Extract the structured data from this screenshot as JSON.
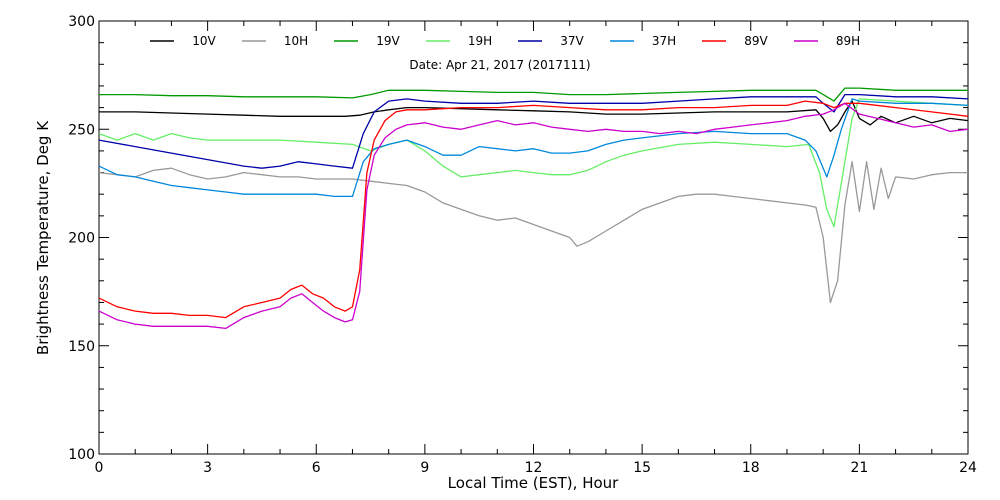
{
  "chart_data": {
    "type": "line",
    "subtitle": "Date: Apr 21, 2017 (2017111)",
    "xlabel": "Local Time (EST), Hour",
    "ylabel": "Brightness Temperature, Deg K",
    "xlim": [
      0,
      24
    ],
    "ylim": [
      100,
      300
    ],
    "xticks": [
      "0",
      "3",
      "6",
      "9",
      "12",
      "15",
      "18",
      "21",
      "24"
    ],
    "yticks": [
      "100",
      "150",
      "200",
      "250",
      "300"
    ],
    "grid": false,
    "legend_position": "top",
    "series": [
      {
        "name": "10V",
        "color": "#000000",
        "x": [
          0,
          1,
          2,
          3,
          4,
          5,
          6,
          6.8,
          7.2,
          7.6,
          8,
          8.5,
          9,
          10,
          11,
          12,
          13,
          14,
          15,
          16,
          17,
          18,
          19,
          19.8,
          20,
          20.2,
          20.4,
          20.6,
          20.8,
          21,
          21.3,
          21.6,
          22,
          22.5,
          23,
          23.5,
          24
        ],
        "y": [
          258,
          258,
          257.5,
          257,
          256.5,
          256,
          256,
          256,
          256.5,
          258,
          259,
          260,
          260,
          259.5,
          259,
          258.5,
          258,
          257,
          257,
          257.5,
          258,
          258,
          258,
          259,
          255,
          249,
          252,
          258,
          263,
          255,
          252,
          256,
          253,
          256,
          253,
          255,
          254
        ]
      },
      {
        "name": "10H",
        "color": "#999999",
        "x": [
          0,
          0.5,
          1,
          1.5,
          2,
          2.5,
          3,
          3.5,
          4,
          4.5,
          5,
          5.5,
          6,
          6.5,
          7,
          7.5,
          8,
          8.5,
          9,
          9.5,
          10,
          10.5,
          11,
          11.5,
          12,
          12.5,
          13,
          13.2,
          13.5,
          14,
          14.5,
          15,
          15.5,
          16,
          16.5,
          17,
          17.5,
          18,
          18.5,
          19,
          19.5,
          19.8,
          20,
          20.2,
          20.4,
          20.6,
          20.8,
          21,
          21.2,
          21.4,
          21.6,
          21.8,
          22,
          22.5,
          23,
          23.5,
          24
        ],
        "y": [
          230,
          229,
          228,
          231,
          232,
          229,
          227,
          228,
          230,
          229,
          228,
          228,
          227,
          227,
          227,
          226,
          225,
          224,
          221,
          216,
          213,
          210,
          208,
          209,
          206,
          203,
          200,
          196,
          198,
          203,
          208,
          213,
          216,
          219,
          220,
          220,
          219,
          218,
          217,
          216,
          215,
          214,
          200,
          170,
          180,
          215,
          235,
          212,
          235,
          213,
          232,
          218,
          228,
          227,
          229,
          230,
          230
        ]
      },
      {
        "name": "19V",
        "color": "#009900",
        "x": [
          0,
          1,
          2,
          3,
          4,
          5,
          6,
          7,
          7.5,
          8,
          9,
          10,
          11,
          12,
          13,
          14,
          15,
          16,
          17,
          18,
          19,
          19.8,
          20,
          20.3,
          20.6,
          21,
          22,
          23,
          24
        ],
        "y": [
          266,
          266,
          265.5,
          265.5,
          265,
          265,
          265,
          264.5,
          266,
          268,
          268,
          267.5,
          267,
          267,
          266,
          266,
          266.5,
          267,
          267.5,
          268,
          268,
          268,
          266,
          263,
          269,
          269,
          268,
          268,
          268
        ]
      },
      {
        "name": "19H",
        "color": "#66ee66",
        "x": [
          0,
          0.5,
          1,
          1.5,
          2,
          2.5,
          3,
          4,
          5,
          6,
          7,
          7.5,
          8,
          8.5,
          9,
          9.5,
          10,
          10.5,
          11,
          11.5,
          12,
          12.5,
          13,
          13.5,
          14,
          14.5,
          15,
          16,
          17,
          18,
          19,
          19.6,
          19.9,
          20.1,
          20.3,
          20.5,
          20.8,
          21,
          22,
          23,
          24
        ],
        "y": [
          248,
          245,
          248,
          245,
          248,
          246,
          245,
          245,
          245,
          244,
          243,
          240,
          243,
          245,
          240,
          233,
          228,
          229,
          230,
          231,
          230,
          229,
          229,
          231,
          235,
          238,
          240,
          243,
          244,
          243,
          242,
          243,
          230,
          213,
          205,
          225,
          255,
          264,
          263,
          262,
          261
        ]
      },
      {
        "name": "37V",
        "color": "#0000aa",
        "x": [
          0,
          1,
          2,
          3,
          4,
          4.5,
          5,
          5.5,
          6,
          6.5,
          7,
          7.3,
          7.6,
          8,
          8.5,
          9,
          10,
          11,
          12,
          13,
          14,
          15,
          16,
          17,
          18,
          19,
          19.8,
          20,
          20.3,
          20.6,
          21,
          22,
          23,
          24
        ],
        "y": [
          245,
          242,
          239,
          236,
          233,
          232,
          233,
          235,
          234,
          233,
          232,
          248,
          258,
          263,
          264,
          263,
          262,
          262,
          263,
          262,
          262,
          262,
          263,
          264,
          265,
          265,
          265,
          262,
          258,
          266,
          266,
          265,
          265,
          264
        ]
      },
      {
        "name": "37H",
        "color": "#0088dd",
        "x": [
          0,
          0.5,
          1,
          1.5,
          2,
          2.5,
          3,
          3.5,
          4,
          5,
          6,
          6.5,
          7,
          7.3,
          7.6,
          8,
          8.5,
          9,
          9.5,
          10,
          10.5,
          11,
          11.5,
          12,
          12.5,
          13,
          13.5,
          14,
          14.5,
          15,
          16,
          17,
          18,
          19,
          19.5,
          19.8,
          20,
          20.1,
          20.3,
          20.5,
          20.8,
          21,
          22,
          23,
          24
        ],
        "y": [
          233,
          229,
          228,
          226,
          224,
          223,
          222,
          221,
          220,
          220,
          220,
          219,
          219,
          235,
          241,
          243,
          245,
          242,
          238,
          238,
          242,
          241,
          240,
          241,
          239,
          239,
          240,
          243,
          245,
          246,
          248,
          249,
          248,
          248,
          245,
          240,
          232,
          228,
          238,
          250,
          264,
          263,
          262,
          262,
          261
        ]
      },
      {
        "name": "89V",
        "color": "#ff0000",
        "x": [
          0,
          0.5,
          1,
          1.5,
          2,
          2.5,
          3,
          3.5,
          4,
          4.5,
          5,
          5.3,
          5.6,
          5.9,
          6.2,
          6.5,
          6.8,
          7,
          7.2,
          7.4,
          7.6,
          7.9,
          8.2,
          8.5,
          9,
          10,
          11,
          12,
          13,
          14,
          15,
          16,
          17,
          18,
          19,
          19.5,
          20,
          20.3,
          20.6,
          21,
          22,
          23,
          24
        ],
        "y": [
          172,
          168,
          166,
          165,
          165,
          164,
          164,
          163,
          168,
          170,
          172,
          176,
          178,
          174,
          172,
          168,
          166,
          168,
          185,
          230,
          245,
          254,
          258,
          259,
          259,
          260,
          260,
          261,
          260,
          259,
          259,
          260,
          260,
          261,
          261,
          263,
          262,
          260,
          262,
          262,
          260,
          258,
          256
        ]
      },
      {
        "name": "89H",
        "color": "#cc00cc",
        "x": [
          0,
          0.5,
          1,
          1.5,
          2,
          2.5,
          3,
          3.5,
          4,
          4.5,
          5,
          5.3,
          5.6,
          5.9,
          6.2,
          6.5,
          6.8,
          7,
          7.2,
          7.4,
          7.6,
          7.9,
          8.2,
          8.5,
          9,
          9.5,
          10,
          10.5,
          11,
          11.5,
          12,
          12.5,
          13,
          13.5,
          14,
          14.5,
          15,
          15.5,
          16,
          16.5,
          17,
          17.5,
          18,
          18.5,
          19,
          19.5,
          20,
          20.3,
          20.6,
          21,
          21.5,
          22,
          22.5,
          23,
          23.5,
          24
        ],
        "y": [
          166,
          162,
          160,
          159,
          159,
          159,
          159,
          158,
          163,
          166,
          168,
          172,
          174,
          170,
          166,
          163,
          161,
          162,
          175,
          222,
          238,
          246,
          250,
          252,
          253,
          251,
          250,
          252,
          254,
          252,
          253,
          251,
          250,
          249,
          250,
          249,
          249,
          248,
          249,
          248,
          250,
          251,
          252,
          253,
          254,
          256,
          257,
          259,
          262,
          257,
          255,
          253,
          251,
          252,
          249,
          250
        ]
      }
    ]
  }
}
